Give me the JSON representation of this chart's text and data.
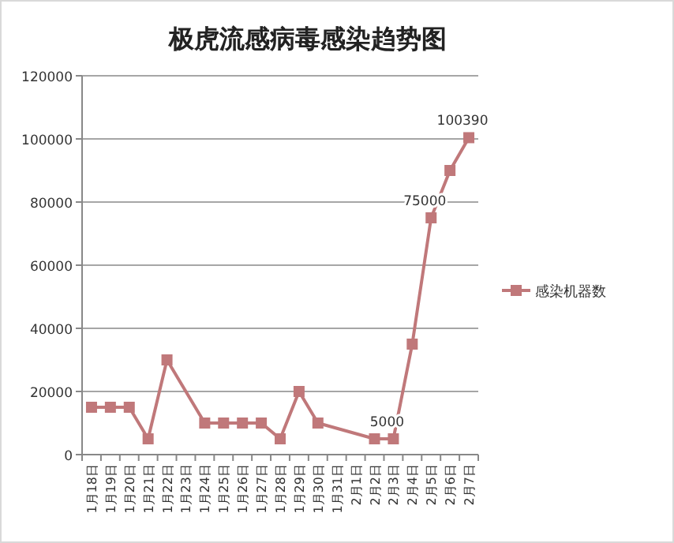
{
  "chart_data": {
    "type": "line",
    "title": "极虎流感病毒感染趋势图",
    "categories": [
      "1月18日",
      "1月19日",
      "1月20日",
      "1月21日",
      "1月22日",
      "1月23日",
      "1月24日",
      "1月25日",
      "1月26日",
      "1月27日",
      "1月28日",
      "1月29日",
      "1月30日",
      "1月31日",
      "2月1日",
      "2月2日",
      "2月3日",
      "2月4日",
      "2月5日",
      "2月6日",
      "2月7日"
    ],
    "series": [
      {
        "name": "感染机器数",
        "color": "#c0787a",
        "values": [
          15000,
          15000,
          15000,
          5000,
          30000,
          null,
          10000,
          10000,
          10000,
          10000,
          5000,
          20000,
          10000,
          null,
          null,
          5000,
          5000,
          35000,
          75000,
          90000,
          100390
        ],
        "value_labels": [
          null,
          null,
          null,
          null,
          null,
          null,
          null,
          null,
          null,
          null,
          null,
          null,
          null,
          null,
          null,
          null,
          "5000",
          null,
          "75000",
          null,
          "100390"
        ]
      }
    ],
    "ylim": [
      0,
      120000
    ],
    "yticks": [
      0,
      20000,
      40000,
      60000,
      80000,
      100000,
      120000
    ],
    "grid": "y",
    "legend": "right",
    "marker": "square",
    "line_style": "solid"
  }
}
